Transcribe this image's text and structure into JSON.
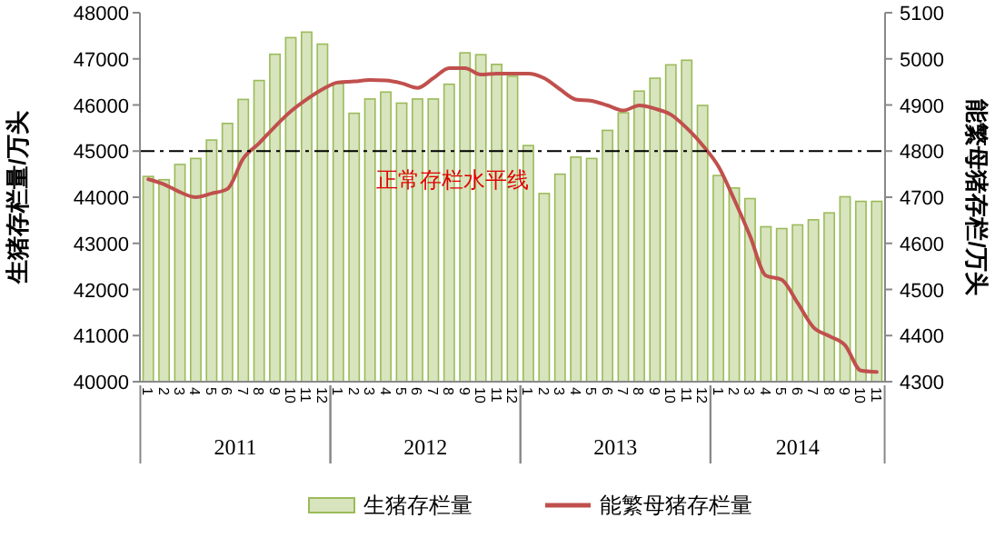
{
  "chart_data": {
    "type": "bar",
    "categories": [
      "1",
      "2",
      "3",
      "4",
      "5",
      "6",
      "7",
      "8",
      "9",
      "10",
      "11",
      "12",
      "1",
      "2",
      "3",
      "4",
      "5",
      "6",
      "7",
      "8",
      "9",
      "10",
      "11",
      "12",
      "1",
      "2",
      "3",
      "4",
      "5",
      "6",
      "7",
      "8",
      "9",
      "10",
      "11",
      "12",
      "1",
      "2",
      "3",
      "4",
      "5",
      "6",
      "7",
      "8",
      "9",
      "10",
      "11"
    ],
    "series": [
      {
        "name": "生猪存栏量",
        "color": "#d7e4bd",
        "values": [
          44450,
          44380,
          44710,
          44840,
          45240,
          45600,
          46120,
          46530,
          47100,
          47460,
          47580,
          47320,
          46460,
          45820,
          46130,
          46280,
          46040,
          46130,
          46130,
          46450,
          47130,
          47090,
          46880,
          46620,
          45120,
          44080,
          44500,
          44870,
          44840,
          45450,
          45830,
          46300,
          46580,
          46870,
          46970,
          45990,
          44470,
          44200,
          43970,
          43360,
          43320,
          43400,
          43510,
          43660,
          44010,
          43910,
          43910
        ]
      },
      {
        "name": "能繁母猪存栏量",
        "type": "line",
        "axis": "y2",
        "color": "#c0504d",
        "values": [
          4739,
          4728,
          4711,
          4700,
          4708,
          4718,
          4784,
          4817,
          4853,
          4886,
          4912,
          4934,
          4949,
          4951,
          4954,
          4953,
          4947,
          4937,
          4958,
          4980,
          4980,
          4966,
          4968,
          4968,
          4968,
          4958,
          4934,
          4912,
          4909,
          4899,
          4888,
          4899,
          4892,
          4879,
          4850,
          4813,
          4767,
          4695,
          4616,
          4530,
          4521,
          4471,
          4418,
          4399,
          4379,
          4324,
          4321
        ]
      }
    ],
    "ylabel": "生猪存栏量/万头",
    "y2label": "能繁母猪存栏/万头",
    "ylim": [
      40000,
      48000
    ],
    "yticks": [
      40000,
      41000,
      42000,
      43000,
      44000,
      45000,
      46000,
      47000,
      48000
    ],
    "y2lim": [
      4300,
      5100
    ],
    "y2ticks": [
      4300,
      4400,
      4500,
      4600,
      4700,
      4800,
      4900,
      5000,
      5100
    ],
    "ref_lines": [
      {
        "axis": "y",
        "value": 45000,
        "label": "正常存栏水平线",
        "color": "#000000",
        "line_style": "dashed"
      }
    ],
    "annotations": [
      "2011",
      "2012",
      "2013",
      "2014"
    ],
    "legend": "bottom",
    "grid": false
  }
}
